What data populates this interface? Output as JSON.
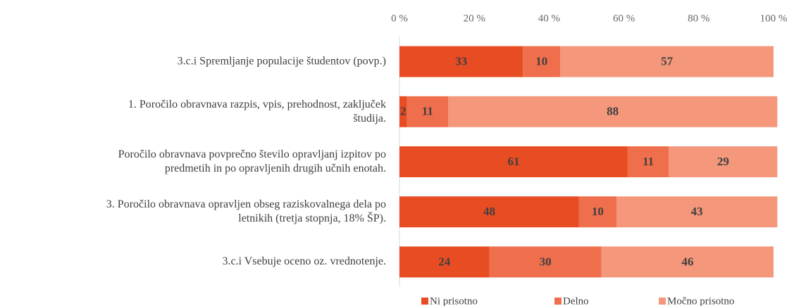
{
  "chart_data": {
    "type": "stacked_bar_horizontal",
    "categories": [
      "3.c.i Spremljanje populacije študentov (povp.)",
      "1.  Poročilo obravnava razpis, vpis, prehodnost, zaključek\nštudija.",
      "Poročilo obravnava povprečno število opravljanj izpitov po\npredmetih in po opravljenih drugih učnih enotah.",
      "3.  Poročilo obravnava opravljen obseg raziskovalnega dela po\nletnikih (tretja stopnja, 18% ŠP).",
      "3.c.i Vsebuje oceno oz. vrednotenje."
    ],
    "series": [
      {
        "name": "Ni prisotno",
        "color": "#e84c22",
        "values": [
          33,
          2,
          61,
          48,
          24
        ]
      },
      {
        "name": "Delno",
        "color": "#ef6e4b",
        "values": [
          10,
          11,
          11,
          10,
          30
        ]
      },
      {
        "name": "Močno prisotno",
        "color": "#f4977b",
        "values": [
          57,
          88,
          29,
          43,
          46
        ]
      }
    ],
    "xlim": [
      0,
      100
    ],
    "xticks": [
      {
        "value": 0,
        "label": "0 %"
      },
      {
        "value": 20,
        "label": "20 %"
      },
      {
        "value": 40,
        "label": "40 %"
      },
      {
        "value": 60,
        "label": "60 %"
      },
      {
        "value": 80,
        "label": "80 %"
      },
      {
        "value": 100,
        "label": "100 %"
      }
    ],
    "legend": "bottom"
  }
}
